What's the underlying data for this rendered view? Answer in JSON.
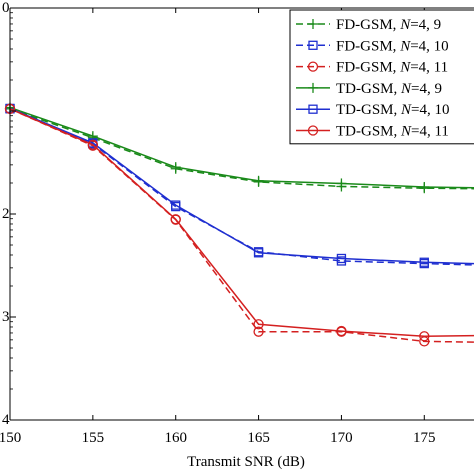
{
  "chart_data": {
    "type": "line",
    "xlabel": "Transmit SNR (dB)",
    "ylabel": "",
    "xlim": [
      150,
      178
    ],
    "ylim_log10": [
      -4,
      0
    ],
    "y_scale": "log",
    "x_ticks": [
      150,
      155,
      160,
      165,
      170,
      175
    ],
    "y_ticks": [
      {
        "exp": 0,
        "label": "0"
      },
      {
        "exp": -1,
        "label": ""
      },
      {
        "exp": -2,
        "label": "2"
      },
      {
        "exp": -3,
        "label": "3"
      },
      {
        "exp": -4,
        "label": "4"
      }
    ],
    "legend_position": "top-right",
    "x": [
      150,
      155,
      160,
      165,
      170,
      175,
      178
    ],
    "series": [
      {
        "name": "FD-GSM, N=4, 9",
        "name_prefix": "FD-GSM, ",
        "name_var": "N",
        "name_suffix": "=4, 9",
        "color": "#1a8a1a",
        "dashed": true,
        "marker": "plus",
        "values": [
          0.105,
          0.055,
          0.0275,
          0.0205,
          0.0185,
          0.0178,
          0.0176
        ]
      },
      {
        "name": "FD-GSM, N=4, 10",
        "name_prefix": "FD-GSM, ",
        "name_var": "N",
        "name_suffix": "=4, 10",
        "color": "#1f2fd0",
        "dashed": true,
        "marker": "square",
        "values": [
          0.105,
          0.048,
          0.0118,
          0.0043,
          0.0035,
          0.0033,
          0.0032
        ]
      },
      {
        "name": "FD-GSM, N=4, 11",
        "name_prefix": "FD-GSM, ",
        "name_var": "N",
        "name_suffix": "=4, 11",
        "color": "#d42020",
        "dashed": true,
        "marker": "circle",
        "values": [
          0.105,
          0.046,
          0.0088,
          0.00072,
          0.00072,
          0.00058,
          0.00057
        ]
      },
      {
        "name": "TD-GSM, N=4, 9",
        "name_prefix": "TD-GSM, ",
        "name_var": "N",
        "name_suffix": "=4, 9",
        "color": "#1a8a1a",
        "dashed": false,
        "marker": "plus",
        "values": [
          0.108,
          0.057,
          0.0285,
          0.021,
          0.0198,
          0.0183,
          0.018
        ]
      },
      {
        "name": "TD-GSM, N=4, 10",
        "name_prefix": "TD-GSM, ",
        "name_var": "N",
        "name_suffix": "=4, 10",
        "color": "#1f2fd0",
        "dashed": false,
        "marker": "square",
        "values": [
          0.106,
          0.049,
          0.0122,
          0.0042,
          0.0037,
          0.0034,
          0.0033
        ]
      },
      {
        "name": "TD-GSM, N=4, 11",
        "name_prefix": "TD-GSM, ",
        "name_var": "N",
        "name_suffix": "=4, 11",
        "color": "#d42020",
        "dashed": false,
        "marker": "circle",
        "values": [
          0.105,
          0.047,
          0.0089,
          0.00085,
          0.00073,
          0.00065,
          0.00066
        ]
      }
    ]
  }
}
